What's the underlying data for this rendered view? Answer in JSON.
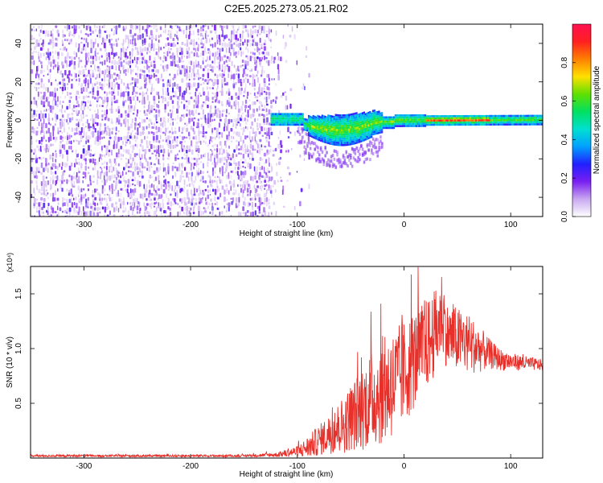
{
  "title": "C2E5.2025.273.05.21.R02",
  "colors": {
    "snr_line": "#e8302a",
    "spectrogram_low": "#5a10e6",
    "spectrogram_mid": "#00c080",
    "spectrogram_high": "#ff1010"
  },
  "chart_data": [
    {
      "type": "heatmap",
      "name": "spectrogram",
      "xlabel": "Height of straight line (km)",
      "ylabel": "Frequency (Hz)",
      "xlim": [
        -350,
        130
      ],
      "ylim": [
        -50,
        50
      ],
      "xticks": [
        -300,
        -200,
        -100,
        0,
        100
      ],
      "xtick_labels": [
        "-300",
        "-200",
        "-100",
        "0",
        "100"
      ],
      "yticks": [
        -40,
        -20,
        0,
        20,
        40
      ],
      "ytick_labels": [
        "-40",
        "-20",
        "0",
        "20",
        "40"
      ],
      "noise_region_x": [
        -350,
        -100
      ],
      "signal_band": {
        "x_start": -125,
        "x_end": 130,
        "center_hz": 0,
        "half_width_hz": 3,
        "peak_amplitude_near_x": [
          20,
          80
        ]
      },
      "colorbar": {
        "label": "Normalized spectral amplitude",
        "range": [
          0,
          1
        ],
        "ticks": [
          0.0,
          0.2,
          0.4,
          0.6,
          0.8
        ],
        "tick_labels": [
          "0.0",
          "0.2",
          "0.4",
          "0.6",
          "0.8"
        ],
        "stops": [
          "#ffffff",
          "#c8a8f0",
          "#7a1ff0",
          "#2020ff",
          "#00a0ff",
          "#00e0d0",
          "#00e060",
          "#60e000",
          "#ffe000",
          "#ff8000",
          "#ff2020",
          "#ff1050"
        ]
      }
    },
    {
      "type": "line",
      "name": "snr",
      "xlabel": "Height of straight line (km)",
      "ylabel": "SNR (10 * v/v)",
      "multiplier": "(x10⁴)",
      "xlim": [
        -350,
        130
      ],
      "ylim": [
        0,
        1.75
      ],
      "xticks": [
        -300,
        -200,
        -100,
        0,
        100
      ],
      "xtick_labels": [
        "-300",
        "-200",
        "-100",
        "0",
        "100"
      ],
      "yticks": [
        0.5,
        1.0,
        1.5
      ],
      "ytick_labels": [
        "0.5",
        "1.0",
        "1.5"
      ],
      "series": [
        {
          "name": "SNR",
          "x": [
            -350,
            -300,
            -250,
            -200,
            -150,
            -120,
            -100,
            -90,
            -80,
            -70,
            -60,
            -50,
            -40,
            -30,
            -20,
            -10,
            0,
            10,
            20,
            30,
            36,
            40,
            50,
            60,
            70,
            80,
            90,
            100,
            110,
            120,
            130
          ],
          "y": [
            0.02,
            0.02,
            0.02,
            0.02,
            0.02,
            0.03,
            0.06,
            0.1,
            0.16,
            0.22,
            0.28,
            0.36,
            0.45,
            0.55,
            0.62,
            0.68,
            0.78,
            0.9,
            1.02,
            1.15,
            1.35,
            1.12,
            1.08,
            1.05,
            1.0,
            0.95,
            0.9,
            0.88,
            0.87,
            0.86,
            0.85
          ],
          "noise_amplitude": [
            0.01,
            0.01,
            0.01,
            0.01,
            0.01,
            0.02,
            0.05,
            0.1,
            0.14,
            0.18,
            0.25,
            0.3,
            0.38,
            0.45,
            0.5,
            0.5,
            0.48,
            0.45,
            0.42,
            0.4,
            0.4,
            0.3,
            0.3,
            0.28,
            0.22,
            0.14,
            0.1,
            0.08,
            0.07,
            0.06,
            0.05
          ]
        }
      ]
    }
  ]
}
